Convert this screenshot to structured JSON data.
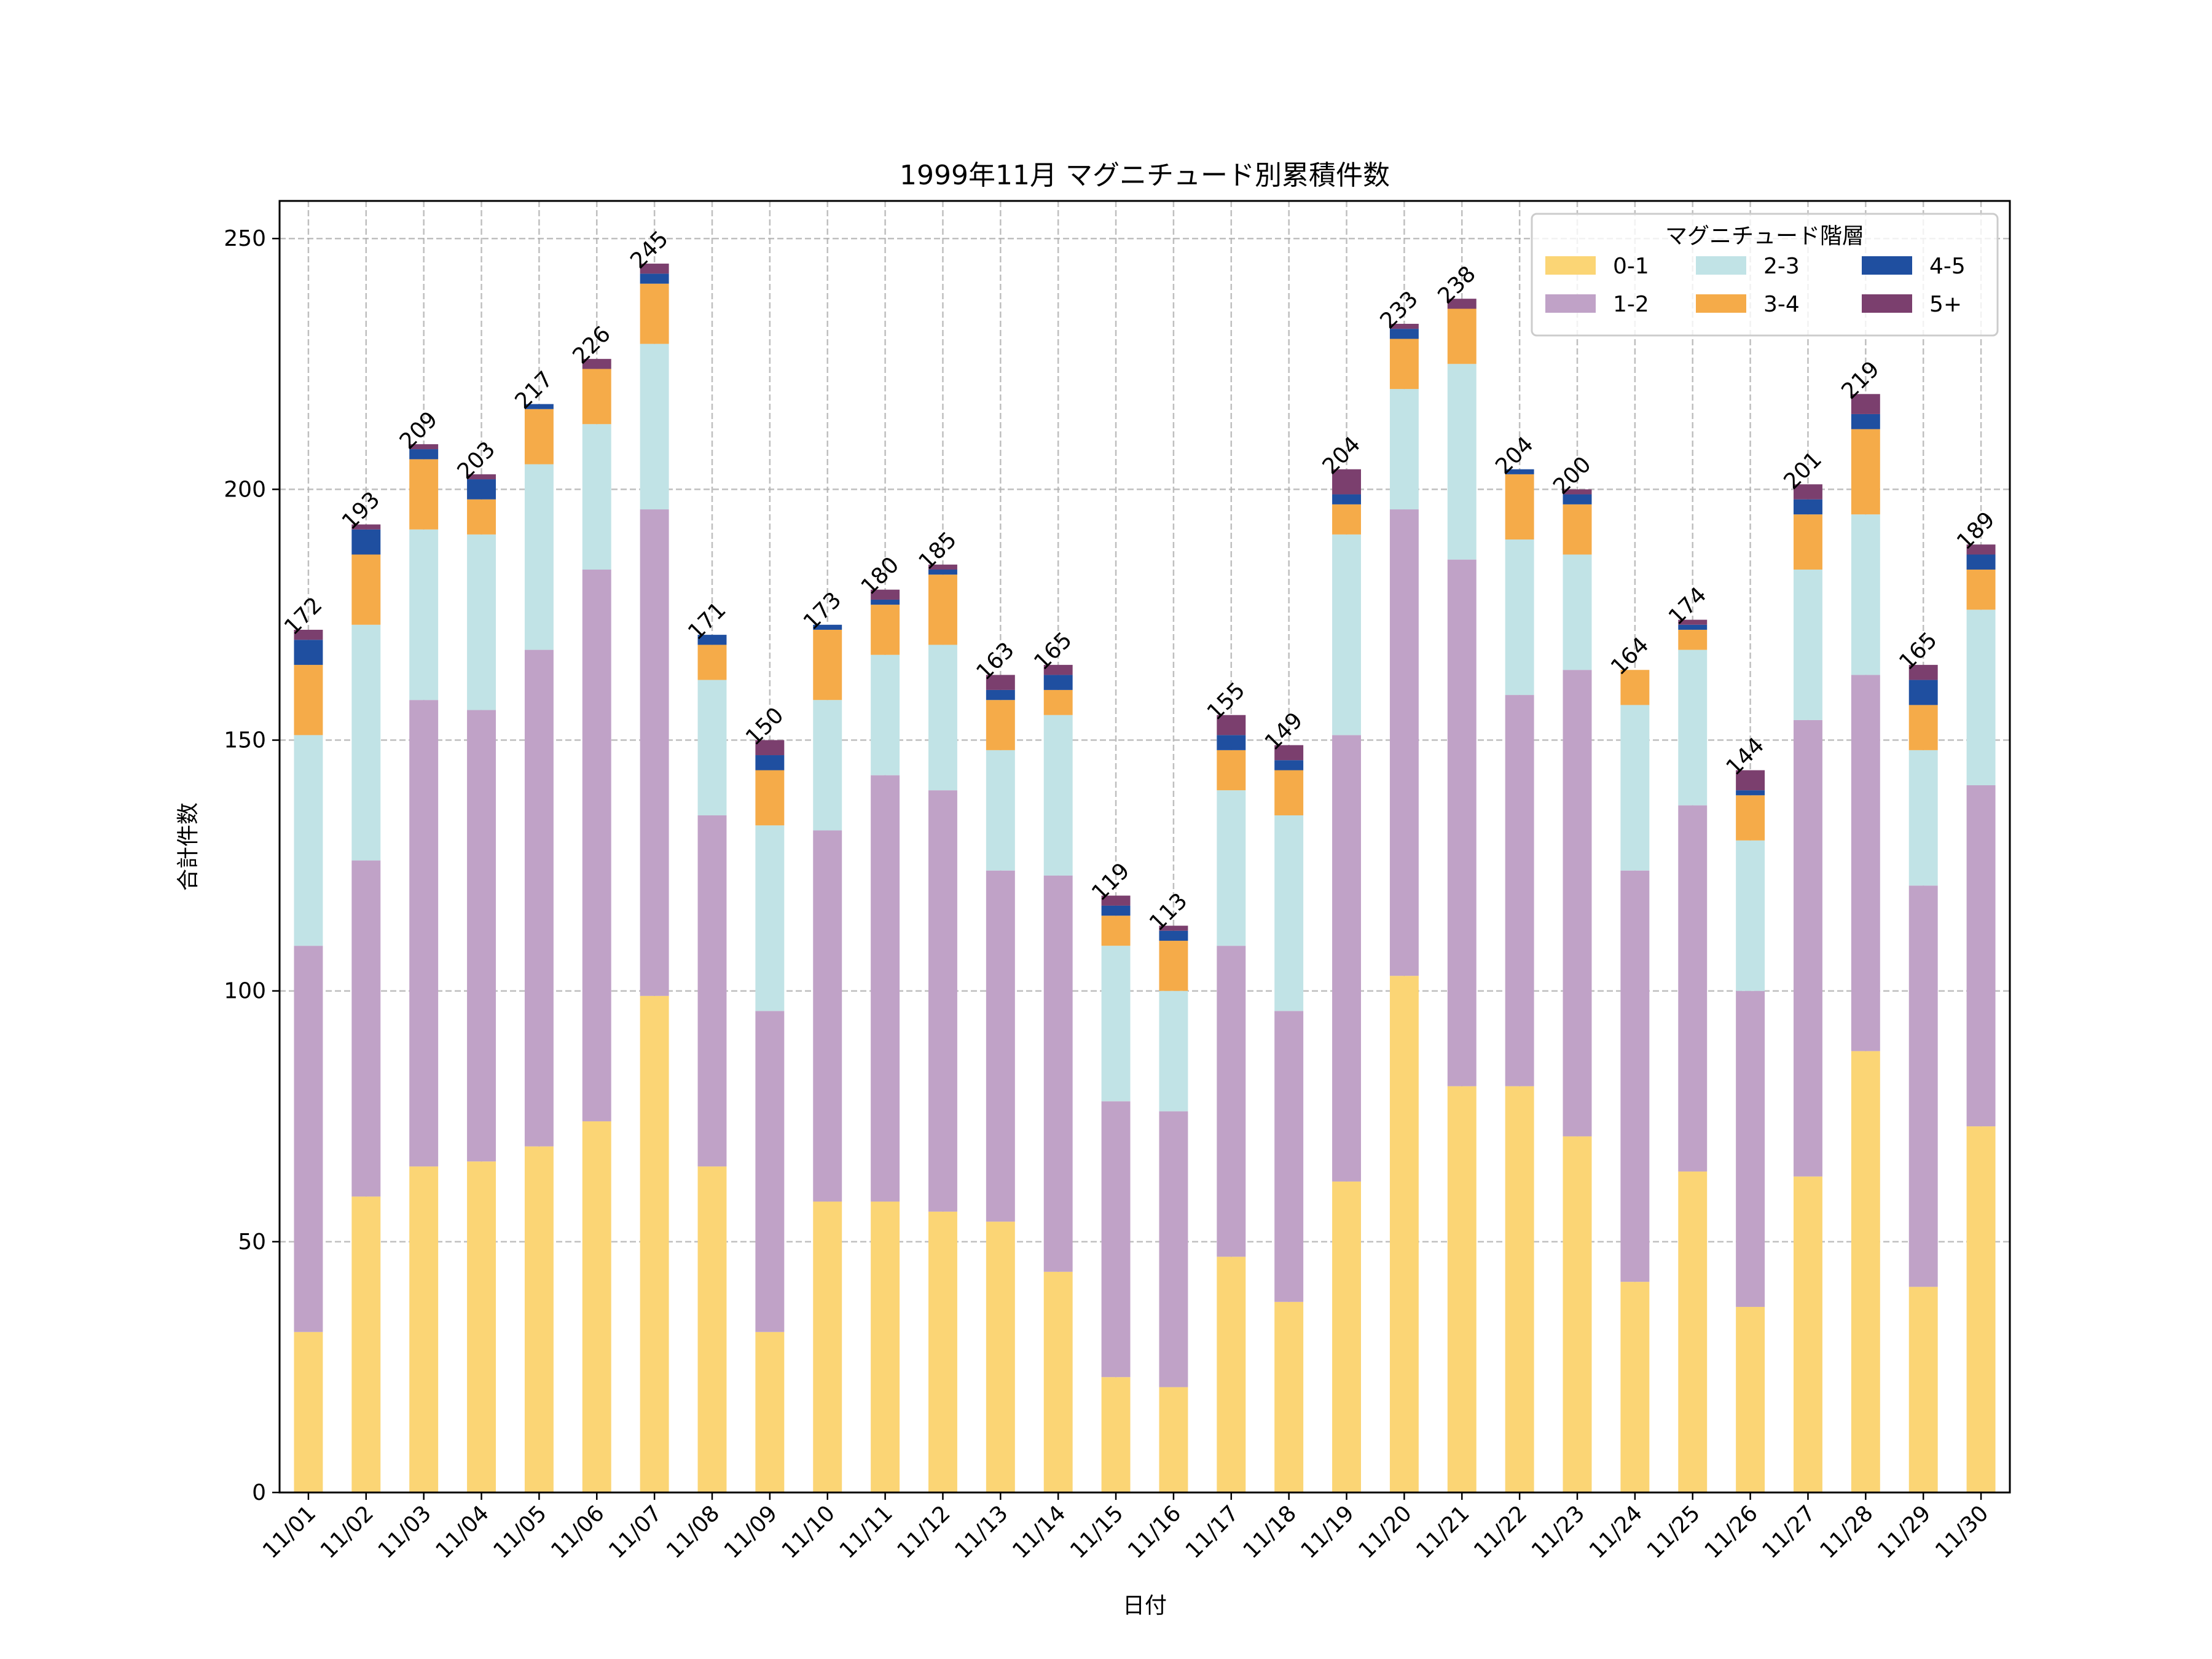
{
  "chart_data": {
    "type": "bar",
    "stacked": true,
    "title": "1999年11月 マグニチュード別累積件数",
    "xlabel": "日付",
    "ylabel": "合計件数",
    "ylim": [
      0,
      257.5
    ],
    "yticks": [
      0,
      50,
      100,
      150,
      200,
      250
    ],
    "grid": true,
    "legend": {
      "title": "マグニチュード階層",
      "placement": "top-right",
      "columns": 3
    },
    "categories": [
      "11/01",
      "11/02",
      "11/03",
      "11/04",
      "11/05",
      "11/06",
      "11/07",
      "11/08",
      "11/09",
      "11/10",
      "11/11",
      "11/12",
      "11/13",
      "11/14",
      "11/15",
      "11/16",
      "11/17",
      "11/18",
      "11/19",
      "11/20",
      "11/21",
      "11/22",
      "11/23",
      "11/24",
      "11/25",
      "11/26",
      "11/27",
      "11/28",
      "11/29",
      "11/30"
    ],
    "series": [
      {
        "name": "0-1",
        "color": "#fbd575",
        "values": [
          32,
          59,
          65,
          66,
          69,
          74,
          99,
          65,
          32,
          58,
          58,
          56,
          54,
          44,
          23,
          21,
          47,
          38,
          62,
          103,
          81,
          81,
          71,
          42,
          64,
          37,
          63,
          88,
          41,
          73
        ]
      },
      {
        "name": "1-2",
        "color": "#c0a2c7",
        "values": [
          77,
          67,
          93,
          90,
          99,
          110,
          97,
          70,
          64,
          74,
          85,
          84,
          70,
          79,
          55,
          55,
          62,
          58,
          89,
          93,
          105,
          78,
          93,
          82,
          73,
          63,
          91,
          75,
          80,
          68
        ]
      },
      {
        "name": "2-3",
        "color": "#c1e3e6",
        "values": [
          42,
          47,
          34,
          35,
          37,
          29,
          33,
          27,
          37,
          26,
          24,
          29,
          24,
          32,
          31,
          24,
          31,
          39,
          40,
          24,
          39,
          31,
          23,
          33,
          31,
          30,
          30,
          32,
          27,
          35
        ]
      },
      {
        "name": "3-4",
        "color": "#f5ab49",
        "values": [
          14,
          14,
          14,
          7,
          11,
          11,
          12,
          7,
          11,
          14,
          10,
          14,
          10,
          5,
          6,
          10,
          8,
          9,
          6,
          10,
          11,
          13,
          10,
          7,
          4,
          9,
          11,
          17,
          9,
          8
        ]
      },
      {
        "name": "4-5",
        "color": "#1f4fa0",
        "values": [
          5,
          5,
          2,
          4,
          1,
          0,
          2,
          2,
          3,
          1,
          1,
          1,
          2,
          3,
          2,
          2,
          3,
          2,
          2,
          2,
          0,
          1,
          2,
          0,
          1,
          1,
          3,
          3,
          5,
          3
        ]
      },
      {
        "name": "5+",
        "color": "#7b3f6e",
        "values": [
          2,
          1,
          1,
          1,
          0,
          2,
          2,
          0,
          3,
          0,
          2,
          1,
          3,
          2,
          2,
          1,
          4,
          3,
          5,
          1,
          2,
          0,
          1,
          0,
          1,
          4,
          3,
          4,
          3,
          2
        ]
      }
    ],
    "totals": [
      172,
      193,
      209,
      203,
      217,
      226,
      245,
      171,
      150,
      173,
      180,
      185,
      163,
      165,
      119,
      113,
      155,
      149,
      204,
      233,
      238,
      204,
      200,
      164,
      174,
      144,
      201,
      219,
      165,
      189
    ]
  }
}
